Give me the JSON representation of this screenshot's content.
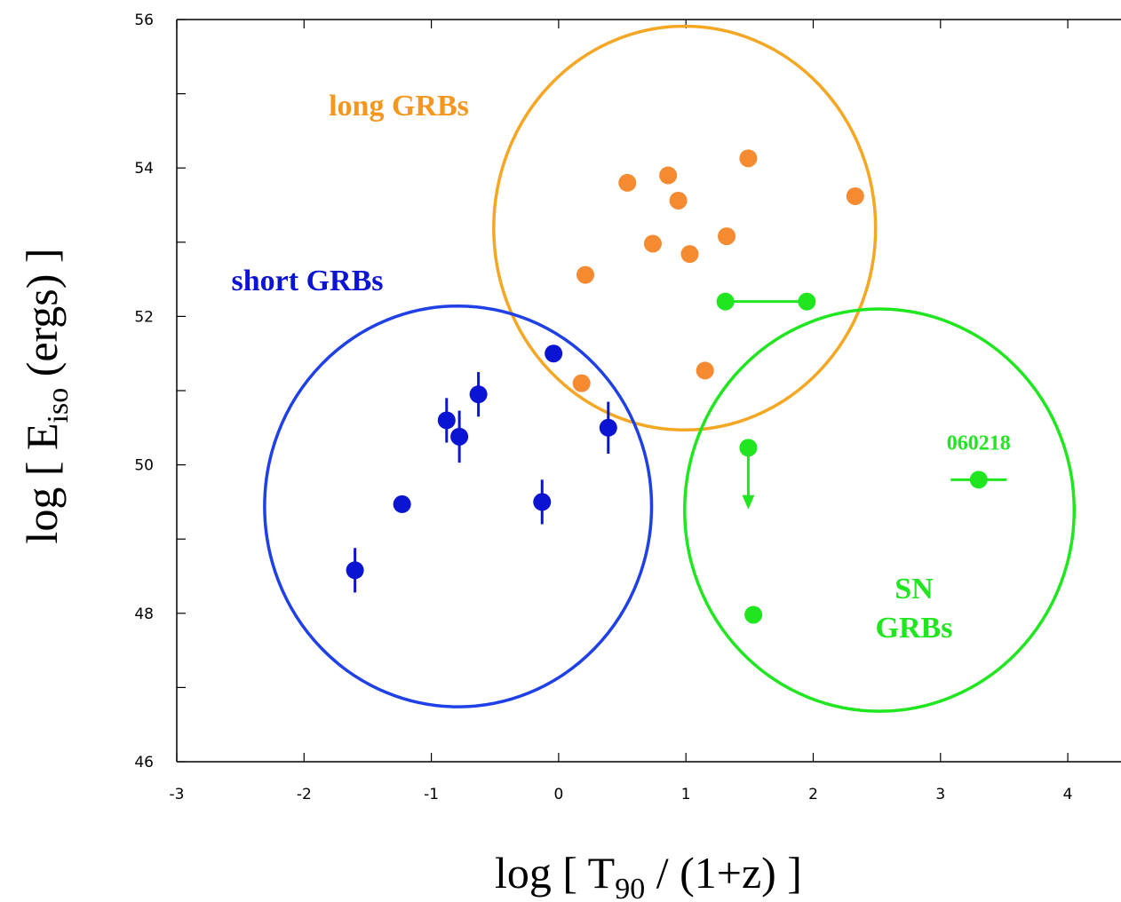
{
  "chart_data": {
    "type": "scatter",
    "xlabel": {
      "prefix": "log [ T",
      "sub": "90",
      "suffix": " / (1+z) ]"
    },
    "ylabel": {
      "prefix": "log [ E",
      "sub": "iso",
      "suffix": " (ergs) ]"
    },
    "xlim": [
      -3,
      4.4
    ],
    "ylim": [
      46,
      56
    ],
    "x_ticks": [
      -3,
      -2,
      -1,
      0,
      1,
      2,
      3,
      4
    ],
    "y_ticks": [
      46,
      48,
      50,
      52,
      54,
      56
    ],
    "x_tick_labels": [
      "-3",
      "-2",
      "-1",
      "0",
      "1",
      "2",
      "3",
      "4"
    ],
    "y_tick_labels": [
      "46",
      "48",
      "50",
      "52",
      "54",
      "56"
    ],
    "grid": false,
    "series": [
      {
        "key": "long",
        "color": "#f58a31",
        "points": [
          {
            "x": 0.54,
            "y": 53.8
          },
          {
            "x": 0.86,
            "y": 53.9
          },
          {
            "x": 0.94,
            "y": 53.56
          },
          {
            "x": 1.49,
            "y": 54.13
          },
          {
            "x": 2.33,
            "y": 53.62
          },
          {
            "x": 0.74,
            "y": 52.98
          },
          {
            "x": 1.03,
            "y": 52.84
          },
          {
            "x": 1.32,
            "y": 53.08
          },
          {
            "x": 0.21,
            "y": 52.56
          },
          {
            "x": 1.15,
            "y": 51.27
          },
          {
            "x": 0.18,
            "y": 51.1
          }
        ]
      },
      {
        "key": "short",
        "color": "#0a14d2",
        "points": [
          {
            "x": -1.6,
            "y": 48.58,
            "yerr": 0.3
          },
          {
            "x": -1.23,
            "y": 49.47
          },
          {
            "x": -0.88,
            "y": 50.6,
            "yerr": 0.3
          },
          {
            "x": -0.78,
            "y": 50.38,
            "yerr": 0.35
          },
          {
            "x": -0.63,
            "y": 50.95,
            "yerr": 0.3
          },
          {
            "x": -0.13,
            "y": 49.5,
            "yerr": 0.3
          },
          {
            "x": -0.04,
            "y": 51.5
          },
          {
            "x": 0.39,
            "y": 50.5,
            "yerr": 0.35
          }
        ]
      },
      {
        "key": "sn",
        "color": "#20e620",
        "points": [
          {
            "x": 1.31,
            "y": 52.2,
            "x_to": 1.95
          },
          {
            "x": 1.95,
            "y": 52.2
          },
          {
            "x": 1.49,
            "y": 50.23,
            "upper_limit_to": 49.45
          },
          {
            "x": 1.53,
            "y": 47.98
          },
          {
            "x": 3.3,
            "y": 49.8,
            "xerr": 0.22,
            "label": "060218"
          }
        ]
      }
    ],
    "circles": [
      {
        "key": "long",
        "color": "#f5a623",
        "cx": 0.99,
        "cy": 53.19,
        "rx": 1.5,
        "ry": 2.72
      },
      {
        "key": "short",
        "color": "#1e40e6",
        "cx": -0.79,
        "cy": 49.44,
        "rx": 1.52,
        "ry": 2.7
      },
      {
        "key": "sn",
        "color": "#20e620",
        "cx": 2.52,
        "cy": 49.39,
        "rx": 1.53,
        "ry": 2.71
      }
    ],
    "annotations": [
      {
        "key": "long",
        "lines": [
          "long GRBs"
        ],
        "color": "#f5961e"
      },
      {
        "key": "short",
        "lines": [
          "short GRBs"
        ],
        "color": "#0a14d2"
      },
      {
        "key": "sn",
        "lines": [
          "SN",
          "GRBs"
        ],
        "color": "#20e620"
      }
    ]
  }
}
